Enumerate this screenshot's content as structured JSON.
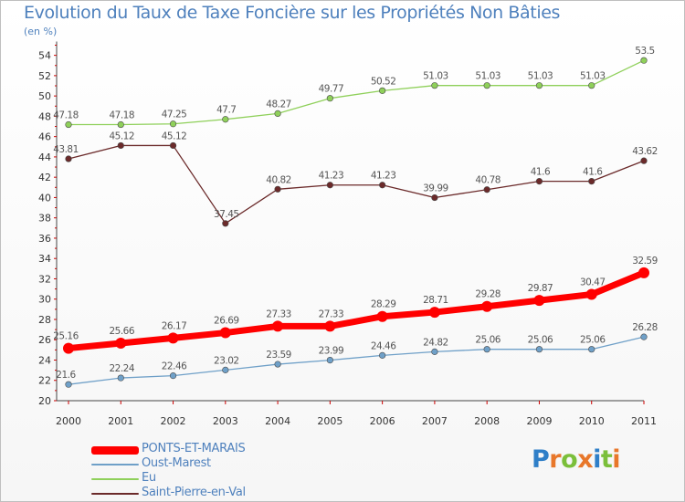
{
  "chart_data": {
    "type": "line",
    "title": "Evolution du Taux de Taxe Foncière sur les Propriétés Non Bâties",
    "unit_label": "(en %)",
    "x": [
      "2000",
      "2001",
      "2002",
      "2003",
      "2004",
      "2005",
      "2006",
      "2007",
      "2008",
      "2009",
      "2010",
      "2011"
    ],
    "ylim": [
      20,
      55
    ],
    "yticks": [
      "20",
      "22",
      "24",
      "26",
      "28",
      "30",
      "32",
      "34",
      "36",
      "38",
      "40",
      "42",
      "44",
      "46",
      "48",
      "50",
      "52",
      "54"
    ],
    "grid": false,
    "legend_position": "bottom-left",
    "series": [
      {
        "name": "PONTS-ET-MARAIS",
        "color": "#ff0000",
        "values": [
          25.16,
          25.66,
          26.17,
          26.69,
          27.33,
          27.33,
          28.29,
          28.71,
          29.28,
          29.87,
          30.47,
          32.59
        ],
        "labels": [
          "25.16",
          "25.66",
          "26.17",
          "26.69",
          "27.33",
          "27.33",
          "28.29",
          "28.71",
          "29.28",
          "29.87",
          "30.47",
          "32.59"
        ]
      },
      {
        "name": "Oust-Marest",
        "color": "#6fa0c8",
        "values": [
          21.6,
          22.24,
          22.46,
          23.02,
          23.59,
          23.99,
          24.46,
          24.82,
          25.06,
          25.06,
          25.06,
          26.28
        ],
        "labels": [
          "21.6",
          "22.24",
          "22.46",
          "23.02",
          "23.59",
          "23.99",
          "24.46",
          "24.82",
          "25.06",
          "25.06",
          "25.06",
          "26.28"
        ]
      },
      {
        "name": "Eu",
        "color": "#8fd05a",
        "values": [
          47.18,
          47.18,
          47.25,
          47.7,
          48.27,
          49.77,
          50.52,
          51.03,
          51.03,
          51.03,
          51.03,
          53.5
        ],
        "labels": [
          "47.18",
          "47.18",
          "47.25",
          "47.7",
          "48.27",
          "49.77",
          "50.52",
          "51.03",
          "51.03",
          "51.03",
          "51.03",
          "53.5"
        ]
      },
      {
        "name": "Saint-Pierre-en-Val",
        "color": "#6b2a2a",
        "values": [
          43.81,
          45.12,
          45.12,
          37.45,
          40.82,
          41.23,
          41.23,
          39.99,
          40.78,
          41.6,
          41.6,
          43.62
        ],
        "labels": [
          "43.81",
          "45.12",
          "45.12",
          "37.45",
          "40.82",
          "41.23",
          "41.23",
          "39.99",
          "40.78",
          "41.6",
          "41.6",
          "43.62"
        ]
      }
    ]
  },
  "legend_items": [
    "PONTS-ET-MARAIS",
    "Oust-Marest",
    "Eu",
    "Saint-Pierre-en-Val"
  ],
  "logo": {
    "letters": [
      "P",
      "r",
      "o",
      "x",
      "i",
      "t",
      "i"
    ],
    "colors": [
      "#2f7fc8",
      "#e8772a",
      "#7bbf3a",
      "#e8772a",
      "#2f7fc8",
      "#7bbf3a",
      "#e8772a"
    ]
  }
}
